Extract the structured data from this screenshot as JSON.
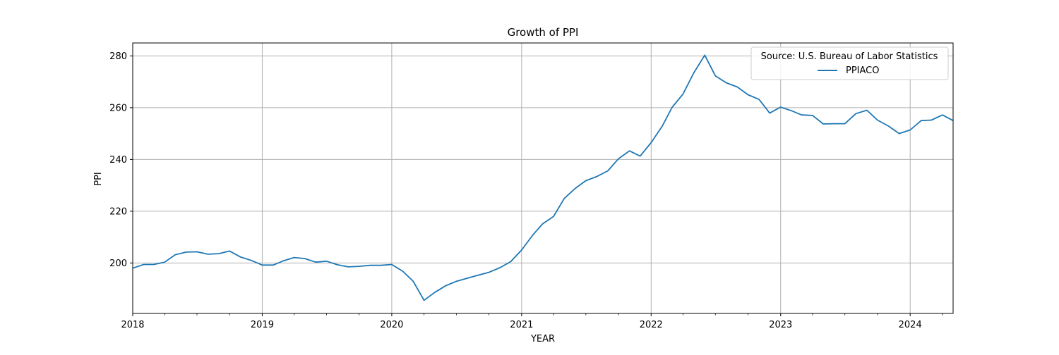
{
  "chart_data": {
    "type": "line",
    "title": "Growth of PPI",
    "xlabel": "YEAR",
    "ylabel": "PPI",
    "xlim": [
      "2018-01-01",
      "2024-05-01"
    ],
    "ylim": [
      180.5,
      285.0
    ],
    "x_ticks": [
      "2018",
      "2019",
      "2020",
      "2021",
      "2022",
      "2023",
      "2024"
    ],
    "y_ticks": [
      200,
      220,
      240,
      260,
      280
    ],
    "grid": true,
    "legend": {
      "title": "Source: U.S. Bureau of Labor Statistics",
      "position": "top-right"
    },
    "series": [
      {
        "name": "PPIACO",
        "color": "#1f77b4",
        "x": [
          "2018-01-01",
          "2018-02-01",
          "2018-03-01",
          "2018-04-01",
          "2018-05-01",
          "2018-06-01",
          "2018-07-01",
          "2018-08-01",
          "2018-09-01",
          "2018-10-01",
          "2018-11-01",
          "2018-12-01",
          "2019-01-01",
          "2019-02-01",
          "2019-03-01",
          "2019-04-01",
          "2019-05-01",
          "2019-06-01",
          "2019-07-01",
          "2019-08-01",
          "2019-09-01",
          "2019-10-01",
          "2019-11-01",
          "2019-12-01",
          "2020-01-01",
          "2020-02-01",
          "2020-03-01",
          "2020-04-01",
          "2020-05-01",
          "2020-06-01",
          "2020-07-01",
          "2020-08-01",
          "2020-09-01",
          "2020-10-01",
          "2020-11-01",
          "2020-12-01",
          "2021-01-01",
          "2021-02-01",
          "2021-03-01",
          "2021-04-01",
          "2021-05-01",
          "2021-06-01",
          "2021-07-01",
          "2021-08-01",
          "2021-09-01",
          "2021-10-01",
          "2021-11-01",
          "2021-12-01",
          "2022-01-01",
          "2022-02-01",
          "2022-03-01",
          "2022-04-01",
          "2022-05-01",
          "2022-06-01",
          "2022-07-01",
          "2022-08-01",
          "2022-09-01",
          "2022-10-01",
          "2022-11-01",
          "2022-12-01",
          "2023-01-01",
          "2023-02-01",
          "2023-03-01",
          "2023-04-01",
          "2023-05-01",
          "2023-06-01",
          "2023-07-01",
          "2023-08-01",
          "2023-09-01",
          "2023-10-01",
          "2023-11-01",
          "2023-12-01",
          "2024-01-01",
          "2024-02-01",
          "2024-03-01",
          "2024-04-01",
          "2024-05-01"
        ],
        "values": [
          198.0,
          199.4,
          199.4,
          200.3,
          203.2,
          204.2,
          204.3,
          203.4,
          203.6,
          204.6,
          202.3,
          201.0,
          199.2,
          199.2,
          200.8,
          202.1,
          201.7,
          200.3,
          200.7,
          199.3,
          198.5,
          198.7,
          199.1,
          199.1,
          199.4,
          196.8,
          193.0,
          185.6,
          188.6,
          191.2,
          192.9,
          194.1,
          195.3,
          196.4,
          198.2,
          200.5,
          205.0,
          210.7,
          215.1,
          218.0,
          224.9,
          228.8,
          231.8,
          233.4,
          235.6,
          240.3,
          243.3,
          241.3,
          246.5,
          252.8,
          260.1,
          265.3,
          273.4,
          280.3,
          272.3,
          269.6,
          268.0,
          265.0,
          263.2,
          257.9,
          260.2,
          258.8,
          257.2,
          257.0,
          253.7,
          253.8,
          253.8,
          257.7,
          259.0,
          255.2,
          252.9,
          250.0,
          251.4,
          255.0,
          255.2,
          257.2,
          255.0
        ]
      }
    ]
  }
}
